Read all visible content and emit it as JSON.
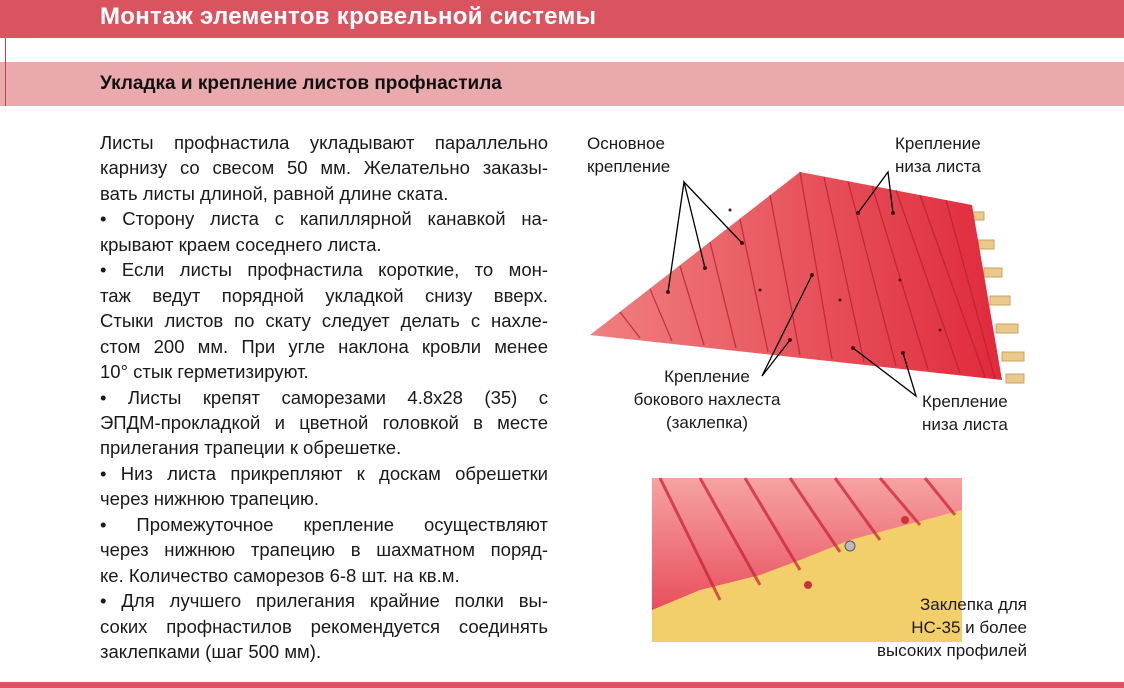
{
  "header": {
    "title": "Монтаж элементов кровельной системы"
  },
  "section": {
    "title": "Укладка и крепление листов профнастила"
  },
  "body": {
    "lines": [
      "Листы профнастила укладывают параллельно",
      "карнизу со свесом 50 мм. Желательно заказы-",
      "вать листы длиной, равной длине ската.",
      "• Сторону листа с капиллярной канавкой на-",
      "крывают краем соседнего листа.",
      "• Если листы профнастила короткие, то мон-",
      "таж ведут порядной укладкой снизу вверх.",
      "Стыки листов по скату следует делать с нахле-",
      "стом 200 мм. При угле наклона кровли менее",
      "10° стык герметизируют.",
      "• Листы крепят саморезами 4.8х28 (35) с",
      "ЭПДМ-прокладкой и цветной головкой в месте",
      "прилегания трапеции к обрешетке.",
      "• Низ листа прикрепляют к доскам обрешетки",
      "через нижнюю трапецию.",
      "• Промежуточное крепление осуществляют",
      "через нижнюю трапецию в шахматном поряд-",
      "ке. Количество саморезов 6-8 шт. на кв.м.",
      "• Для лучшего прилегания крайние полки вы-",
      "соких профнастилов рекомендуется соединять",
      "заклепками (шаг 500 мм)."
    ]
  },
  "callouts": {
    "main_fastening": {
      "lines": [
        "Основное",
        "крепление"
      ]
    },
    "bottom_fastening_top": {
      "lines": [
        "Крепление",
        "низа листа"
      ]
    },
    "side_overlap": {
      "lines": [
        "Крепление",
        "бокового нахлеста",
        "(заклепка)"
      ]
    },
    "bottom_fastening": {
      "lines": [
        "Крепление",
        "низа листа"
      ]
    },
    "rivet": {
      "lines": [
        "Заклепка для",
        "НС-35 и более",
        "высоких профилей"
      ]
    }
  }
}
